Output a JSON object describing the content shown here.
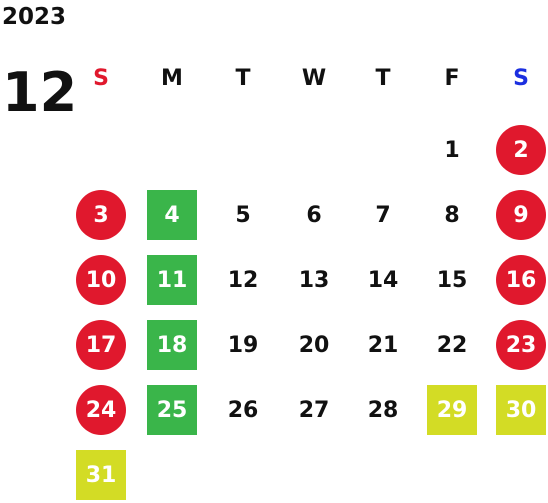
{
  "calendar": {
    "year": "2023",
    "month": "12",
    "weekdays": [
      {
        "label": "S",
        "color": "#e0182d"
      },
      {
        "label": "M",
        "color": "#111111"
      },
      {
        "label": "T",
        "color": "#111111"
      },
      {
        "label": "W",
        "color": "#111111"
      },
      {
        "label": "T",
        "color": "#111111"
      },
      {
        "label": "F",
        "color": "#111111"
      },
      {
        "label": "S",
        "color": "#1b2fe0"
      }
    ],
    "colors": {
      "weekend_circle": "#e0182d",
      "monday_highlight": "#3ab54a",
      "special_highlight": "#d3dc25"
    },
    "weeks": [
      [
        null,
        null,
        null,
        null,
        null,
        {
          "day": "1",
          "style": "plain"
        },
        {
          "day": "2",
          "style": "weekend"
        }
      ],
      [
        {
          "day": "3",
          "style": "weekend"
        },
        {
          "day": "4",
          "style": "holiday"
        },
        {
          "day": "5",
          "style": "plain"
        },
        {
          "day": "6",
          "style": "plain"
        },
        {
          "day": "7",
          "style": "plain"
        },
        {
          "day": "8",
          "style": "plain"
        },
        {
          "day": "9",
          "style": "weekend"
        }
      ],
      [
        {
          "day": "10",
          "style": "weekend"
        },
        {
          "day": "11",
          "style": "holiday"
        },
        {
          "day": "12",
          "style": "plain"
        },
        {
          "day": "13",
          "style": "plain"
        },
        {
          "day": "14",
          "style": "plain"
        },
        {
          "day": "15",
          "style": "plain"
        },
        {
          "day": "16",
          "style": "weekend"
        }
      ],
      [
        {
          "day": "17",
          "style": "weekend"
        },
        {
          "day": "18",
          "style": "holiday"
        },
        {
          "day": "19",
          "style": "plain"
        },
        {
          "day": "20",
          "style": "plain"
        },
        {
          "day": "21",
          "style": "plain"
        },
        {
          "day": "22",
          "style": "plain"
        },
        {
          "day": "23",
          "style": "weekend"
        }
      ],
      [
        {
          "day": "24",
          "style": "weekend"
        },
        {
          "day": "25",
          "style": "holiday"
        },
        {
          "day": "26",
          "style": "plain"
        },
        {
          "day": "27",
          "style": "plain"
        },
        {
          "day": "28",
          "style": "plain"
        },
        {
          "day": "29",
          "style": "special"
        },
        {
          "day": "30",
          "style": "special"
        }
      ],
      [
        {
          "day": "31",
          "style": "special"
        },
        null,
        null,
        null,
        null,
        null,
        null
      ]
    ]
  }
}
